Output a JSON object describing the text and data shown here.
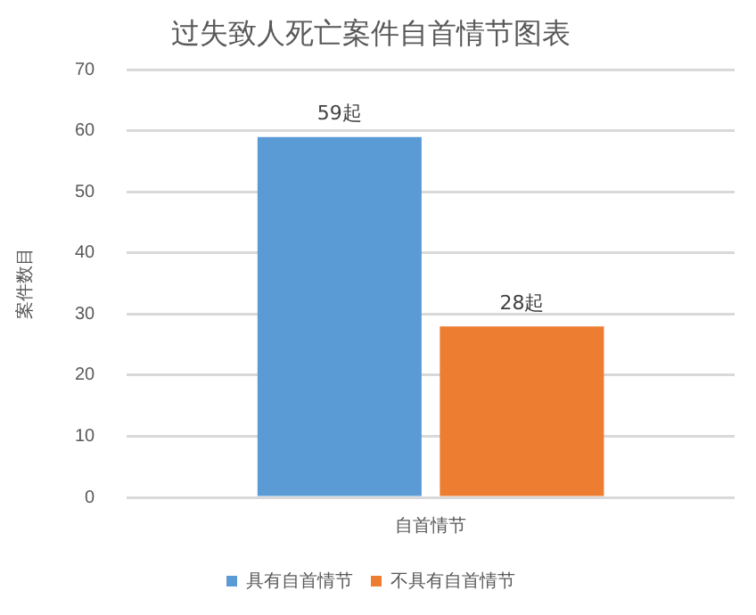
{
  "chart_data": {
    "type": "bar",
    "title": "过失致人死亡案件自首情节图表",
    "ylabel": "案件数目",
    "categories": [
      "自首情节"
    ],
    "series": [
      {
        "name": "具有自首情节",
        "color": "#5b9bd5",
        "values": [
          59
        ],
        "value_labels": [
          "59起"
        ]
      },
      {
        "name": "不具有自首情节",
        "color": "#ed7d31",
        "values": [
          28
        ],
        "value_labels": [
          "28起"
        ]
      }
    ],
    "ylim": [
      0,
      70
    ],
    "yticks": [
      0,
      10,
      20,
      30,
      40,
      50,
      60,
      70
    ],
    "grid": "y",
    "legend": "bottom"
  }
}
